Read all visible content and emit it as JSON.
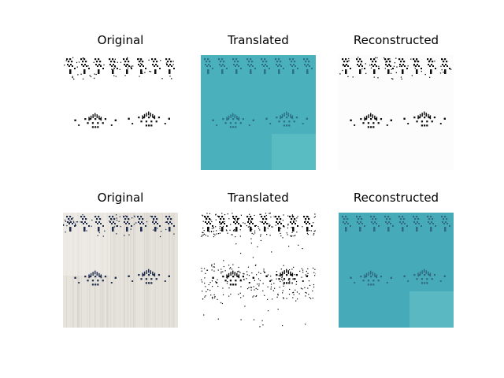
{
  "rows": [
    {
      "panels": [
        {
          "title": "Original",
          "bg": "#ffffff",
          "ink": "#111111",
          "style": "clean"
        },
        {
          "title": "Translated",
          "bg": "#4cb6c0",
          "ink": "#2c6f86",
          "style": "teal"
        },
        {
          "title": "Reconstructed",
          "bg": "#fcfcfc",
          "ink": "#0d0d0d",
          "style": "clean"
        }
      ]
    },
    {
      "panels": [
        {
          "title": "Original",
          "bg": "#e6e2dc",
          "ink": "#1e2b4a",
          "style": "fabric"
        },
        {
          "title": "Translated",
          "bg": "#ffffff",
          "ink": "#0a0a0a",
          "style": "noisy"
        },
        {
          "title": "Reconstructed",
          "bg": "#4aaebb",
          "ink": "#2f6a80",
          "style": "teal"
        }
      ]
    }
  ]
}
